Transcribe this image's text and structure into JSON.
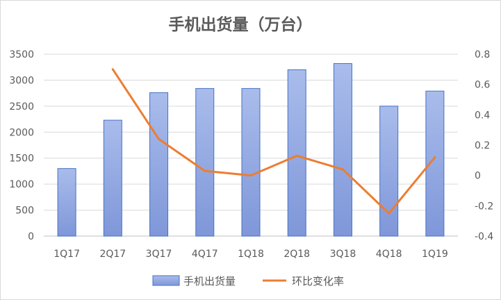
{
  "chart_data": {
    "type": "bar",
    "title": "手机出货量（万台）",
    "categories": [
      "1Q17",
      "2Q17",
      "3Q17",
      "4Q17",
      "1Q18",
      "2Q18",
      "3Q18",
      "4Q18",
      "1Q19"
    ],
    "series": [
      {
        "name": "手机出货量",
        "type": "bar",
        "axis": "left",
        "color": "#8FA6DF",
        "values": [
          1300,
          2230,
          2760,
          2840,
          2840,
          3200,
          3320,
          2500,
          2790
        ]
      },
      {
        "name": "环比变化率",
        "type": "line",
        "axis": "right",
        "color": "#ED7D31",
        "values": [
          null,
          0.7,
          0.24,
          0.03,
          0.0,
          0.13,
          0.04,
          -0.25,
          0.12
        ]
      }
    ],
    "y_left": {
      "min": 0,
      "max": 3500,
      "ticks": [
        0,
        500,
        1000,
        1500,
        2000,
        2500,
        3000,
        3500
      ]
    },
    "y_right": {
      "min": -0.4,
      "max": 0.8,
      "ticks": [
        -0.4,
        -0.2,
        0,
        0.2,
        0.4,
        0.6,
        0.8
      ]
    },
    "grid": true,
    "legend_position": "bottom"
  }
}
